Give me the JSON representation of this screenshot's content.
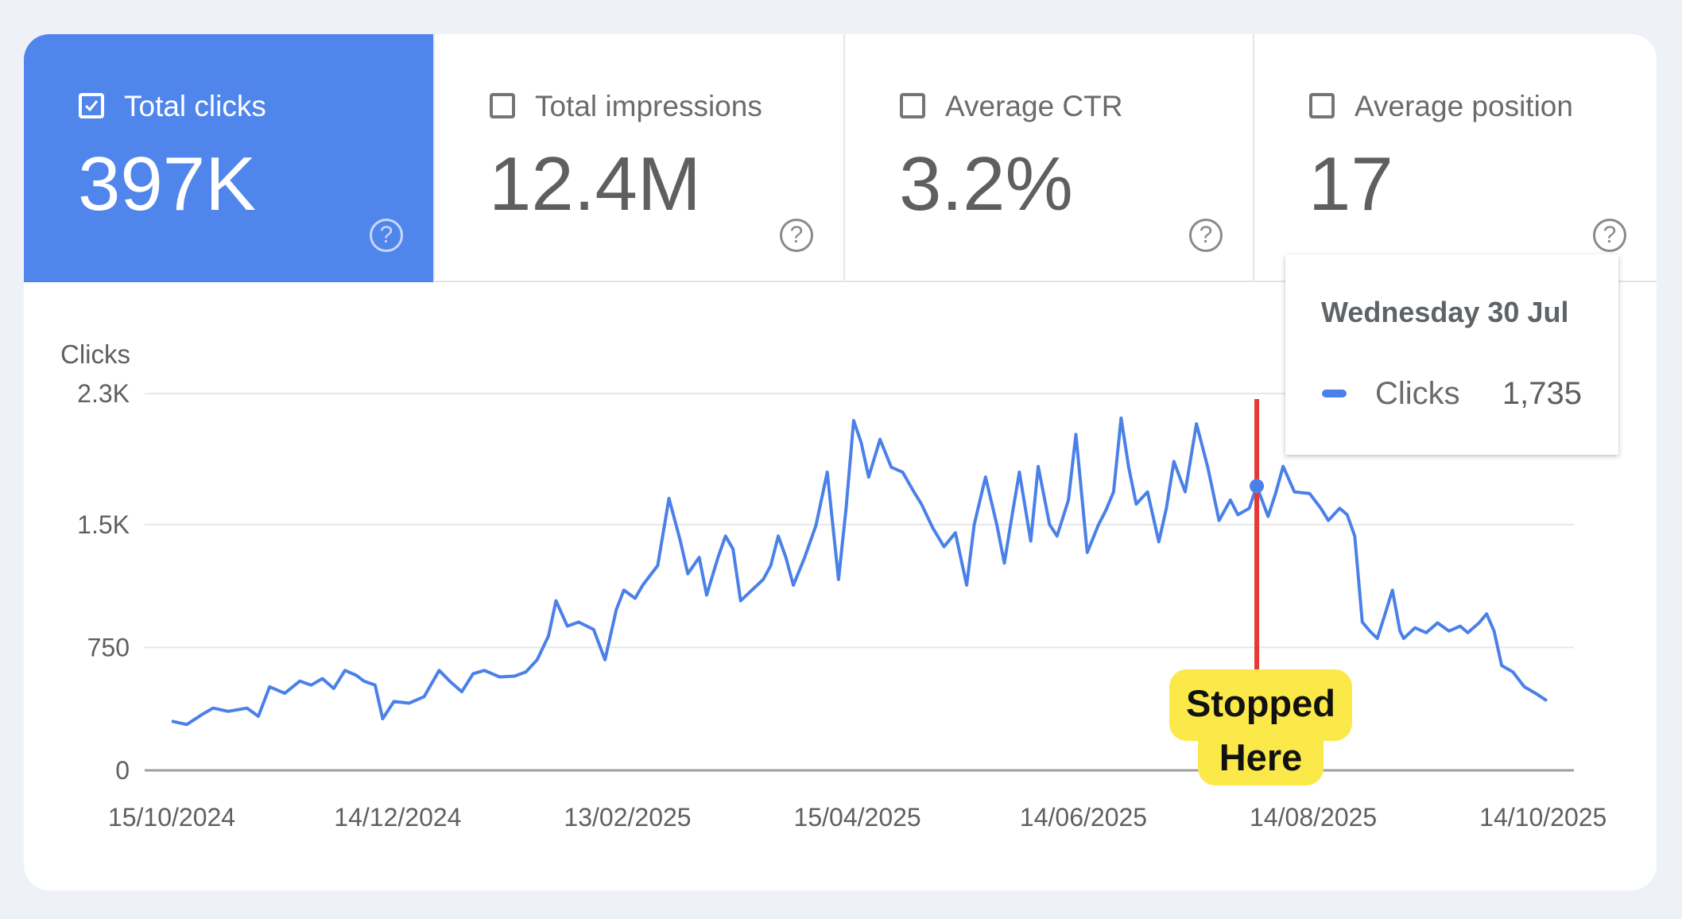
{
  "metrics": [
    {
      "label": "Total clicks",
      "value": "397K",
      "checked": true
    },
    {
      "label": "Total impressions",
      "value": "12.4M",
      "checked": false
    },
    {
      "label": "Average CTR",
      "value": "3.2%",
      "checked": false
    },
    {
      "label": "Average position",
      "value": "17",
      "checked": false
    }
  ],
  "help_glyph": "?",
  "colors": {
    "accent": "#5086ec",
    "line": "#4a80e8",
    "marker": "#e53935",
    "note": "#fbe94a"
  },
  "tooltip": {
    "title": "Wednesday 30 Jul",
    "series": "Clicks",
    "value": "1,735"
  },
  "annotation": {
    "line1": "Stopped",
    "line2": "Here"
  },
  "chart_data": {
    "type": "line",
    "ylabel": "Clicks",
    "ylim": [
      0,
      2300
    ],
    "yticks": [
      {
        "v": 0,
        "label": "0"
      },
      {
        "v": 750,
        "label": "750"
      },
      {
        "v": 1500,
        "label": "1.5K"
      },
      {
        "v": 2300,
        "label": "2.3K"
      }
    ],
    "xlim_days": [
      0,
      365
    ],
    "xticks": [
      {
        "d": 0,
        "label": "15/10/2024"
      },
      {
        "d": 60,
        "label": "14/12/2024"
      },
      {
        "d": 121,
        "label": "13/02/2025"
      },
      {
        "d": 182,
        "label": "15/04/2025"
      },
      {
        "d": 242,
        "label": "14/06/2025"
      },
      {
        "d": 303,
        "label": "14/08/2025"
      },
      {
        "d": 364,
        "label": "14/10/2025"
      }
    ],
    "series": [
      {
        "name": "Clicks",
        "points": [
          [
            0,
            300
          ],
          [
            4,
            280
          ],
          [
            8,
            340
          ],
          [
            11,
            380
          ],
          [
            15,
            360
          ],
          [
            20,
            380
          ],
          [
            23,
            330
          ],
          [
            26,
            510
          ],
          [
            30,
            470
          ],
          [
            34,
            545
          ],
          [
            37,
            520
          ],
          [
            40,
            560
          ],
          [
            43,
            500
          ],
          [
            46,
            610
          ],
          [
            49,
            580
          ],
          [
            51,
            545
          ],
          [
            54,
            520
          ],
          [
            56,
            315
          ],
          [
            59,
            420
          ],
          [
            63,
            410
          ],
          [
            67,
            450
          ],
          [
            71,
            610
          ],
          [
            74,
            540
          ],
          [
            77,
            480
          ],
          [
            80,
            590
          ],
          [
            83,
            610
          ],
          [
            87,
            570
          ],
          [
            91,
            575
          ],
          [
            94,
            600
          ],
          [
            97,
            675
          ],
          [
            100,
            820
          ],
          [
            102,
            1035
          ],
          [
            105,
            880
          ],
          [
            108,
            905
          ],
          [
            112,
            860
          ],
          [
            115,
            675
          ],
          [
            118,
            980
          ],
          [
            120,
            1100
          ],
          [
            123,
            1050
          ],
          [
            125,
            1130
          ],
          [
            129,
            1250
          ],
          [
            132,
            1660
          ],
          [
            135,
            1400
          ],
          [
            137,
            1200
          ],
          [
            140,
            1300
          ],
          [
            142,
            1070
          ],
          [
            145,
            1300
          ],
          [
            147,
            1430
          ],
          [
            149,
            1350
          ],
          [
            151,
            1035
          ],
          [
            154,
            1100
          ],
          [
            157,
            1165
          ],
          [
            159,
            1250
          ],
          [
            161,
            1430
          ],
          [
            163,
            1300
          ],
          [
            165,
            1130
          ],
          [
            168,
            1300
          ],
          [
            171,
            1495
          ],
          [
            174,
            1820
          ],
          [
            177,
            1165
          ],
          [
            179,
            1600
          ],
          [
            181,
            2135
          ],
          [
            183,
            2000
          ],
          [
            185,
            1790
          ],
          [
            188,
            2020
          ],
          [
            191,
            1850
          ],
          [
            194,
            1820
          ],
          [
            197,
            1700
          ],
          [
            199,
            1625
          ],
          [
            202,
            1480
          ],
          [
            205,
            1365
          ],
          [
            208,
            1450
          ],
          [
            211,
            1130
          ],
          [
            213,
            1500
          ],
          [
            216,
            1790
          ],
          [
            219,
            1500
          ],
          [
            221,
            1265
          ],
          [
            223,
            1550
          ],
          [
            225,
            1820
          ],
          [
            228,
            1400
          ],
          [
            230,
            1855
          ],
          [
            233,
            1500
          ],
          [
            235,
            1430
          ],
          [
            238,
            1650
          ],
          [
            240,
            2050
          ],
          [
            243,
            1330
          ],
          [
            246,
            1500
          ],
          [
            248,
            1590
          ],
          [
            250,
            1700
          ],
          [
            252,
            2150
          ],
          [
            254,
            1850
          ],
          [
            256,
            1625
          ],
          [
            259,
            1700
          ],
          [
            262,
            1395
          ],
          [
            264,
            1600
          ],
          [
            266,
            1885
          ],
          [
            269,
            1700
          ],
          [
            272,
            2115
          ],
          [
            275,
            1850
          ],
          [
            278,
            1525
          ],
          [
            281,
            1650
          ],
          [
            283,
            1560
          ],
          [
            286,
            1600
          ],
          [
            288,
            1735
          ],
          [
            291,
            1550
          ],
          [
            293,
            1690
          ],
          [
            295,
            1855
          ],
          [
            298,
            1700
          ],
          [
            302,
            1690
          ],
          [
            305,
            1600
          ],
          [
            307,
            1525
          ],
          [
            310,
            1600
          ],
          [
            312,
            1560
          ],
          [
            314,
            1430
          ],
          [
            316,
            905
          ],
          [
            318,
            850
          ],
          [
            320,
            805
          ],
          [
            322,
            950
          ],
          [
            324,
            1100
          ],
          [
            326,
            850
          ],
          [
            327,
            805
          ],
          [
            330,
            870
          ],
          [
            333,
            840
          ],
          [
            336,
            900
          ],
          [
            339,
            850
          ],
          [
            342,
            880
          ],
          [
            344,
            840
          ],
          [
            347,
            900
          ],
          [
            349,
            955
          ],
          [
            351,
            850
          ],
          [
            353,
            640
          ],
          [
            356,
            600
          ],
          [
            359,
            510
          ],
          [
            362,
            470
          ],
          [
            365,
            425
          ]
        ]
      }
    ]
  }
}
